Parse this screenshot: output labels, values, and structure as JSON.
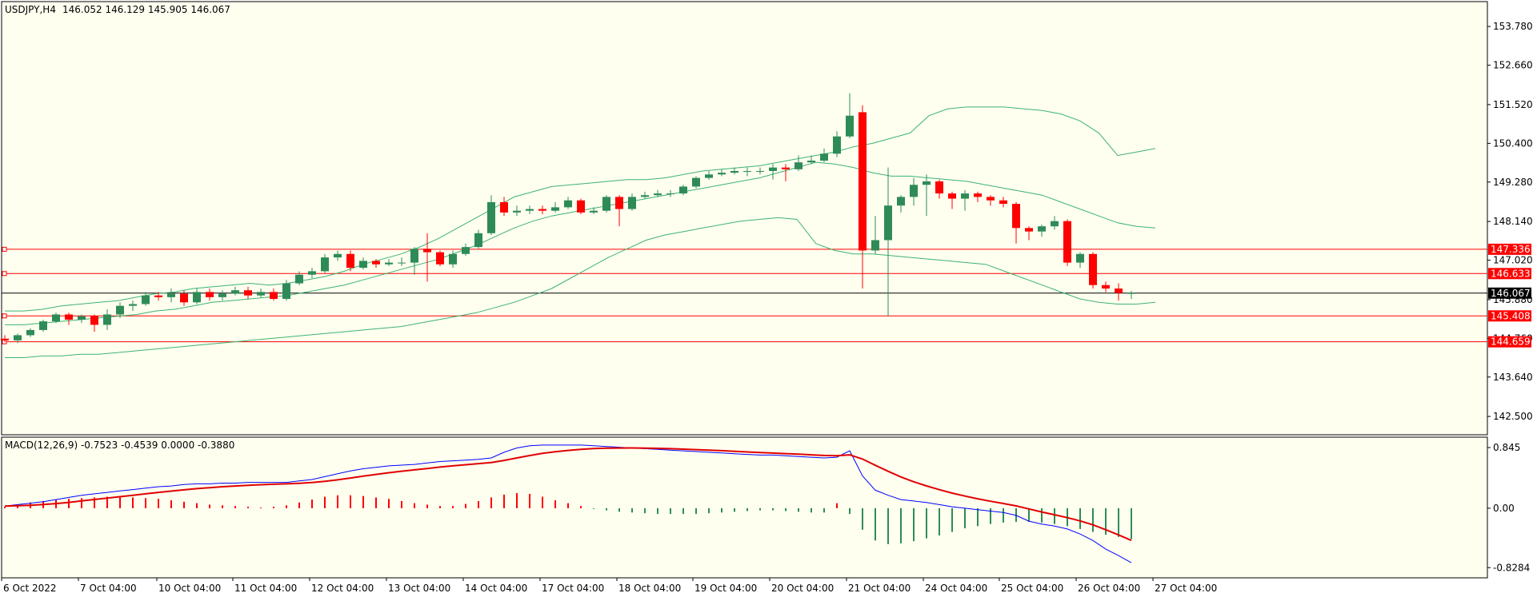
{
  "header": {
    "symbol": "USDJPY,H4",
    "ohlc": "146.052 146.129 145.905 146.067"
  },
  "colors": {
    "background": "#fffff0",
    "bull": "#2e8b57",
    "bear": "#ff0000",
    "band": "#3cb371",
    "level_line": "#ff0000",
    "bid_line": "#000000",
    "macd_line": "#0000ff",
    "signal_line": "#e00000"
  },
  "chart_data": [
    {
      "type": "candlestick",
      "name": "price",
      "title": "USDJPY,H4",
      "ylim": [
        141.97,
        154.5
      ],
      "y_ticks": [
        "153.780",
        "152.660",
        "151.520",
        "150.400",
        "149.280",
        "148.140",
        "147.020",
        "145.880",
        "144.760",
        "143.640",
        "142.500"
      ],
      "x_ticks": [
        "6 Oct 2022",
        "7 Oct 04:00",
        "10 Oct 04:00",
        "11 Oct 04:00",
        "12 Oct 04:00",
        "13 Oct 04:00",
        "14 Oct 04:00",
        "17 Oct 04:00",
        "18 Oct 04:00",
        "19 Oct 04:00",
        "20 Oct 04:00",
        "21 Oct 04:00",
        "24 Oct 04:00",
        "25 Oct 04:00",
        "26 Oct 04:00",
        "27 Oct 04:00"
      ],
      "horizontal_levels": [
        {
          "label": "147.336",
          "value": 147.336
        },
        {
          "label": "146.633",
          "value": 146.633
        },
        {
          "label": "145.408",
          "value": 145.408
        },
        {
          "label": "144.659",
          "value": 144.659
        }
      ],
      "bid": {
        "label": "146.067",
        "value": 146.067
      },
      "candles": [
        [
          144.75,
          144.7,
          144.85,
          144.65
        ],
        [
          144.7,
          144.85,
          144.9,
          144.62
        ],
        [
          144.85,
          145.0,
          145.05,
          144.8
        ],
        [
          145.0,
          145.25,
          145.3,
          144.95
        ],
        [
          145.25,
          145.45,
          145.5,
          145.2
        ],
        [
          145.45,
          145.3,
          145.5,
          145.15
        ],
        [
          145.3,
          145.4,
          145.45,
          145.2
        ],
        [
          145.4,
          145.15,
          145.45,
          144.95
        ],
        [
          145.15,
          145.45,
          145.6,
          145.0
        ],
        [
          145.45,
          145.7,
          145.8,
          145.35
        ],
        [
          145.7,
          145.75,
          145.85,
          145.55
        ],
        [
          145.75,
          146.0,
          146.1,
          145.7
        ],
        [
          146.0,
          145.95,
          146.1,
          145.85
        ],
        [
          145.95,
          146.05,
          146.2,
          145.8
        ],
        [
          146.05,
          145.8,
          146.15,
          145.7
        ],
        [
          145.8,
          146.1,
          146.2,
          145.75
        ],
        [
          146.1,
          145.95,
          146.2,
          145.85
        ],
        [
          145.95,
          146.05,
          146.15,
          145.85
        ],
        [
          146.05,
          146.15,
          146.25,
          146.0
        ],
        [
          146.15,
          146.0,
          146.25,
          145.9
        ],
        [
          146.0,
          146.1,
          146.2,
          145.95
        ],
        [
          146.1,
          145.9,
          146.2,
          145.85
        ],
        [
          145.9,
          146.35,
          146.45,
          145.85
        ],
        [
          146.35,
          146.6,
          146.7,
          146.3
        ],
        [
          146.6,
          146.7,
          146.8,
          146.5
        ],
        [
          146.7,
          147.1,
          147.2,
          146.65
        ],
        [
          147.1,
          147.2,
          147.3,
          147.0
        ],
        [
          147.2,
          146.8,
          147.3,
          146.7
        ],
        [
          146.8,
          147.0,
          147.1,
          146.75
        ],
        [
          147.0,
          146.9,
          147.05,
          146.8
        ],
        [
          146.9,
          146.95,
          147.05,
          146.85
        ],
        [
          146.95,
          146.95,
          147.1,
          146.85
        ],
        [
          146.95,
          147.35,
          147.4,
          146.6
        ],
        [
          147.35,
          147.25,
          147.8,
          146.4
        ],
        [
          147.25,
          146.9,
          147.3,
          146.85
        ],
        [
          146.9,
          147.2,
          147.3,
          146.8
        ],
        [
          147.2,
          147.4,
          147.5,
          147.15
        ],
        [
          147.4,
          147.8,
          147.9,
          147.35
        ],
        [
          147.8,
          148.7,
          148.9,
          147.75
        ],
        [
          148.7,
          148.4,
          148.85,
          148.3
        ],
        [
          148.4,
          148.45,
          148.6,
          148.3
        ],
        [
          148.45,
          148.5,
          148.6,
          148.35
        ],
        [
          148.5,
          148.45,
          148.6,
          148.35
        ],
        [
          148.45,
          148.55,
          148.7,
          148.4
        ],
        [
          148.55,
          148.75,
          148.85,
          148.5
        ],
        [
          148.75,
          148.4,
          148.8,
          148.35
        ],
        [
          148.4,
          148.45,
          148.55,
          148.35
        ],
        [
          148.45,
          148.85,
          148.9,
          148.4
        ],
        [
          148.85,
          148.5,
          148.9,
          148.0
        ],
        [
          148.5,
          148.85,
          148.95,
          148.45
        ],
        [
          148.85,
          148.9,
          149.0,
          148.8
        ],
        [
          148.9,
          148.95,
          149.05,
          148.85
        ],
        [
          148.95,
          148.95,
          149.05,
          148.85
        ],
        [
          148.95,
          149.15,
          149.2,
          148.9
        ],
        [
          149.15,
          149.4,
          149.45,
          149.1
        ],
        [
          149.4,
          149.5,
          149.6,
          149.35
        ],
        [
          149.5,
          149.55,
          149.65,
          149.45
        ],
        [
          149.55,
          149.6,
          149.7,
          149.5
        ],
        [
          149.6,
          149.6,
          149.7,
          149.45
        ],
        [
          149.6,
          149.6,
          149.7,
          149.5
        ],
        [
          149.6,
          149.7,
          149.8,
          149.35
        ],
        [
          149.7,
          149.65,
          149.8,
          149.3
        ],
        [
          149.65,
          149.85,
          150.05,
          149.6
        ],
        [
          149.85,
          149.9,
          150.05,
          149.8
        ],
        [
          149.9,
          150.1,
          150.25,
          149.85
        ],
        [
          150.1,
          150.6,
          150.75,
          150.0
        ],
        [
          150.6,
          151.2,
          151.85,
          150.55
        ],
        [
          151.3,
          147.3,
          151.5,
          146.2
        ],
        [
          147.3,
          147.6,
          148.3,
          147.2
        ],
        [
          147.6,
          148.6,
          149.7,
          145.4
        ],
        [
          148.6,
          148.85,
          148.9,
          148.4
        ],
        [
          148.85,
          149.2,
          149.4,
          148.6
        ],
        [
          149.2,
          149.3,
          149.5,
          148.3
        ],
        [
          149.3,
          148.95,
          149.35,
          148.8
        ],
        [
          148.95,
          148.8,
          149.0,
          148.5
        ],
        [
          148.8,
          148.95,
          149.05,
          148.45
        ],
        [
          148.95,
          148.85,
          149.0,
          148.7
        ],
        [
          148.85,
          148.75,
          148.9,
          148.6
        ],
        [
          148.75,
          148.65,
          148.85,
          148.55
        ],
        [
          148.65,
          147.95,
          148.7,
          147.5
        ],
        [
          147.95,
          147.85,
          148.0,
          147.6
        ],
        [
          147.85,
          148.0,
          148.05,
          147.7
        ],
        [
          148.0,
          148.15,
          148.3,
          147.9
        ],
        [
          148.15,
          146.95,
          148.2,
          146.85
        ],
        [
          146.95,
          147.2,
          147.25,
          146.8
        ],
        [
          147.2,
          146.3,
          147.25,
          146.2
        ],
        [
          146.3,
          146.2,
          146.4,
          146.1
        ],
        [
          146.2,
          146.07,
          146.35,
          145.85
        ],
        [
          146.05,
          146.07,
          146.13,
          145.9
        ]
      ],
      "bands": {
        "upper": [
          145.55,
          145.55,
          145.6,
          145.7,
          145.75,
          145.8,
          145.85,
          145.95,
          146.05,
          146.1,
          146.2,
          146.25,
          146.3,
          146.35,
          146.3,
          146.35,
          146.45,
          146.55,
          146.7,
          146.9,
          147.05,
          147.2,
          147.4,
          147.65,
          147.95,
          148.25,
          148.55,
          148.85,
          149.0,
          149.15,
          149.2,
          149.25,
          149.3,
          149.35,
          149.35,
          149.4,
          149.5,
          149.6,
          149.65,
          149.7,
          149.75,
          149.85,
          149.95,
          150.05,
          150.15,
          150.3,
          150.4,
          150.55,
          150.7,
          151.2,
          151.4,
          151.45,
          151.45,
          151.45,
          151.4,
          151.35,
          151.25,
          151.05,
          150.7,
          150.05,
          150.15,
          150.25
        ],
        "middle": [
          145.15,
          145.15,
          145.2,
          145.25,
          145.3,
          145.35,
          145.4,
          145.45,
          145.55,
          145.6,
          145.7,
          145.8,
          145.85,
          145.9,
          145.95,
          146.0,
          146.1,
          146.2,
          146.3,
          146.45,
          146.6,
          146.75,
          146.9,
          147.05,
          147.25,
          147.45,
          147.7,
          147.95,
          148.15,
          148.3,
          148.4,
          148.5,
          148.6,
          148.7,
          148.8,
          148.9,
          149.0,
          149.1,
          149.2,
          149.3,
          149.4,
          149.55,
          149.7,
          149.85,
          149.8,
          149.7,
          149.55,
          149.45,
          149.45,
          149.4,
          149.35,
          149.3,
          149.2,
          149.1,
          149.0,
          148.9,
          148.7,
          148.5,
          148.3,
          148.1,
          148.0,
          147.95
        ],
        "lower": [
          144.2,
          144.2,
          144.25,
          144.25,
          144.3,
          144.3,
          144.35,
          144.4,
          144.45,
          144.5,
          144.55,
          144.6,
          144.65,
          144.7,
          144.75,
          144.8,
          144.85,
          144.9,
          144.95,
          145.0,
          145.05,
          145.1,
          145.2,
          145.3,
          145.4,
          145.5,
          145.65,
          145.8,
          146.0,
          146.2,
          146.5,
          146.8,
          147.1,
          147.35,
          147.6,
          147.75,
          147.85,
          147.95,
          148.05,
          148.15,
          148.2,
          148.25,
          148.2,
          147.5,
          147.3,
          147.2,
          147.2,
          147.15,
          147.1,
          147.05,
          147.0,
          146.95,
          146.9,
          146.7,
          146.5,
          146.3,
          146.1,
          145.9,
          145.8,
          145.75,
          145.75,
          145.8
        ]
      }
    },
    {
      "type": "bar+line",
      "name": "macd",
      "title": "MACD(12,26,9) -0.7523 -0.4539 0.0000 -0.3880",
      "ylim": [
        -0.97,
        0.99
      ],
      "y_ticks": [
        "0.845",
        "0.00",
        "-0.8284"
      ],
      "histogram": [
        0.02,
        0.05,
        0.08,
        0.1,
        0.12,
        0.13,
        0.14,
        0.15,
        0.16,
        0.16,
        0.15,
        0.14,
        0.13,
        0.11,
        0.09,
        0.07,
        0.05,
        0.04,
        0.03,
        0.02,
        0.01,
        0.02,
        0.04,
        0.08,
        0.12,
        0.16,
        0.18,
        0.18,
        0.17,
        0.15,
        0.13,
        0.1,
        0.07,
        0.05,
        0.03,
        0.03,
        0.06,
        0.1,
        0.15,
        0.19,
        0.21,
        0.2,
        0.16,
        0.11,
        0.07,
        0.03,
        -0.01,
        -0.03,
        -0.05,
        -0.06,
        -0.07,
        -0.08,
        -0.08,
        -0.08,
        -0.08,
        -0.07,
        -0.06,
        -0.05,
        -0.04,
        -0.03,
        -0.03,
        -0.04,
        -0.05,
        -0.06,
        -0.06,
        0.07,
        -0.08,
        -0.3,
        -0.45,
        -0.5,
        -0.49,
        -0.46,
        -0.42,
        -0.38,
        -0.33,
        -0.28,
        -0.25,
        -0.22,
        -0.2,
        -0.19,
        -0.19,
        -0.2,
        -0.22,
        -0.25,
        -0.29,
        -0.33,
        -0.37,
        -0.4,
        -0.43
      ],
      "macd": [
        0.03,
        0.05,
        0.07,
        0.09,
        0.12,
        0.15,
        0.18,
        0.2,
        0.22,
        0.24,
        0.26,
        0.28,
        0.3,
        0.31,
        0.33,
        0.34,
        0.34,
        0.35,
        0.35,
        0.36,
        0.36,
        0.36,
        0.36,
        0.38,
        0.4,
        0.44,
        0.48,
        0.52,
        0.55,
        0.57,
        0.59,
        0.6,
        0.61,
        0.63,
        0.65,
        0.66,
        0.67,
        0.68,
        0.7,
        0.78,
        0.84,
        0.87,
        0.88,
        0.88,
        0.88,
        0.88,
        0.87,
        0.86,
        0.85,
        0.84,
        0.83,
        0.82,
        0.81,
        0.8,
        0.79,
        0.78,
        0.77,
        0.76,
        0.75,
        0.74,
        0.74,
        0.73,
        0.72,
        0.71,
        0.7,
        0.71,
        0.8,
        0.45,
        0.25,
        0.18,
        0.12,
        0.1,
        0.08,
        0.05,
        0.02,
        0.0,
        -0.02,
        -0.04,
        -0.06,
        -0.1,
        -0.18,
        -0.22,
        -0.25,
        -0.29,
        -0.36,
        -0.45,
        -0.57,
        -0.66,
        -0.76
      ]
    }
  ]
}
